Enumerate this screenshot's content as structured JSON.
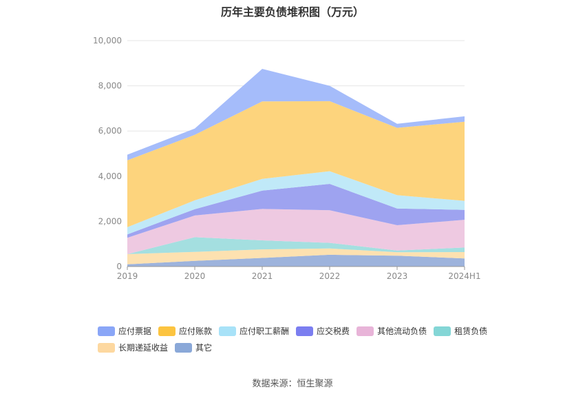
{
  "chart_data": {
    "type": "area",
    "stacked": true,
    "title": "历年主要负债堆积图（万元）",
    "categories": [
      "2019",
      "2020",
      "2021",
      "2022",
      "2023",
      "2024H1"
    ],
    "ylim": [
      0,
      10000
    ],
    "yticks": [
      "0",
      "2,000",
      "4,000",
      "6,000",
      "8,000",
      "10,000"
    ],
    "grid": true,
    "legend_position": "bottom",
    "series": [
      {
        "name": "其它",
        "color": "#9db3dc",
        "values": [
          100,
          250,
          380,
          520,
          480,
          360
        ]
      },
      {
        "name": "长期递延收益",
        "color": "#fde1b0",
        "values": [
          450,
          400,
          380,
          280,
          150,
          280
        ]
      },
      {
        "name": "租赁负债",
        "color": "#a4dfe0",
        "values": [
          0,
          650,
          400,
          250,
          80,
          200
        ]
      },
      {
        "name": "其他流动负债",
        "color": "#eec9e1",
        "values": [
          720,
          960,
          1390,
          1440,
          1120,
          1230
        ]
      },
      {
        "name": "应交税费",
        "color": "#9ea3f0",
        "values": [
          150,
          280,
          810,
          1170,
          740,
          440
        ]
      },
      {
        "name": "应付职工薪酬",
        "color": "#c0e9f8",
        "values": [
          320,
          390,
          520,
          560,
          590,
          400
        ]
      },
      {
        "name": "应付账款",
        "color": "#fdd47d",
        "values": [
          2960,
          2900,
          3430,
          3100,
          2980,
          3500
        ]
      },
      {
        "name": "应付票据",
        "color": "#a5bcfa",
        "values": [
          250,
          280,
          1440,
          680,
          180,
          240
        ]
      }
    ],
    "legend_order": [
      "应付票据",
      "应付账款",
      "应付职工薪酬",
      "应交税费",
      "其他流动负债",
      "租赁负债",
      "长期递延收益",
      "其它"
    ],
    "legend_colors": {
      "应付票据": "#8aa6f7",
      "应付账款": "#fcc440",
      "应付职工薪酬": "#a8e2f8",
      "应交税费": "#7b7ef0",
      "其他流动负债": "#e8b4d8",
      "租赁负债": "#84d6d6",
      "长期递延收益": "#fdd8a0",
      "其它": "#8aa8d8"
    }
  },
  "source": "数据来源：恒生聚源"
}
